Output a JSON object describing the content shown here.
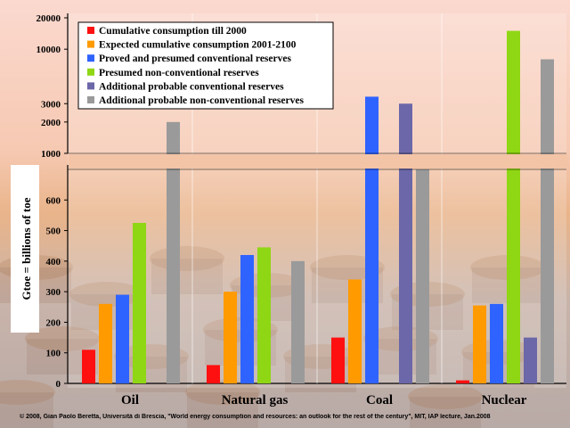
{
  "chart_data": {
    "type": "bar",
    "ylabel": "Gtoe = billions of toe",
    "y_scale": "broken: linear 0-700 (lower panel), logarithmic 1000-20000 (upper panel)",
    "lower_ticks": [
      "0",
      "100",
      "200",
      "300",
      "400",
      "500",
      "600"
    ],
    "upper_ticks": [
      "1000",
      "2000",
      "3000",
      "10000",
      "20000"
    ],
    "grid": false,
    "legend_position": "top-left",
    "categories": [
      "Oil",
      "Natural gas",
      "Coal",
      "Nuclear"
    ],
    "series": [
      {
        "name": "Cumulative consumption till 2000",
        "color": "#ff1010",
        "values": [
          110,
          60,
          150,
          10
        ]
      },
      {
        "name": "Expected cumulative consumption 2001-2100",
        "color": "#ff9a00",
        "values": [
          260,
          300,
          340,
          255
        ]
      },
      {
        "name": "Proved and presumed conventional reserves",
        "color": "#2f63ff",
        "values": [
          290,
          420,
          3500,
          260
        ]
      },
      {
        "name": "Presumed non-conventional reserves",
        "color": "#8fd614",
        "values": [
          525,
          445,
          null,
          15000
        ]
      },
      {
        "name": "Additional probable conventional reserves",
        "color": "#6b67a8",
        "values": [
          null,
          null,
          3000,
          150
        ]
      },
      {
        "name": "Additional probable non-conventional reserves",
        "color": "#9a9a9a",
        "values": [
          2000,
          400,
          700,
          8000
        ]
      }
    ]
  },
  "footer": "© 2008, Gian Paolo Beretta, Università di Brescia, \"World energy consumption and resources: an outlook for the rest of the century\", MIT, IAP lecture, Jan.2008"
}
